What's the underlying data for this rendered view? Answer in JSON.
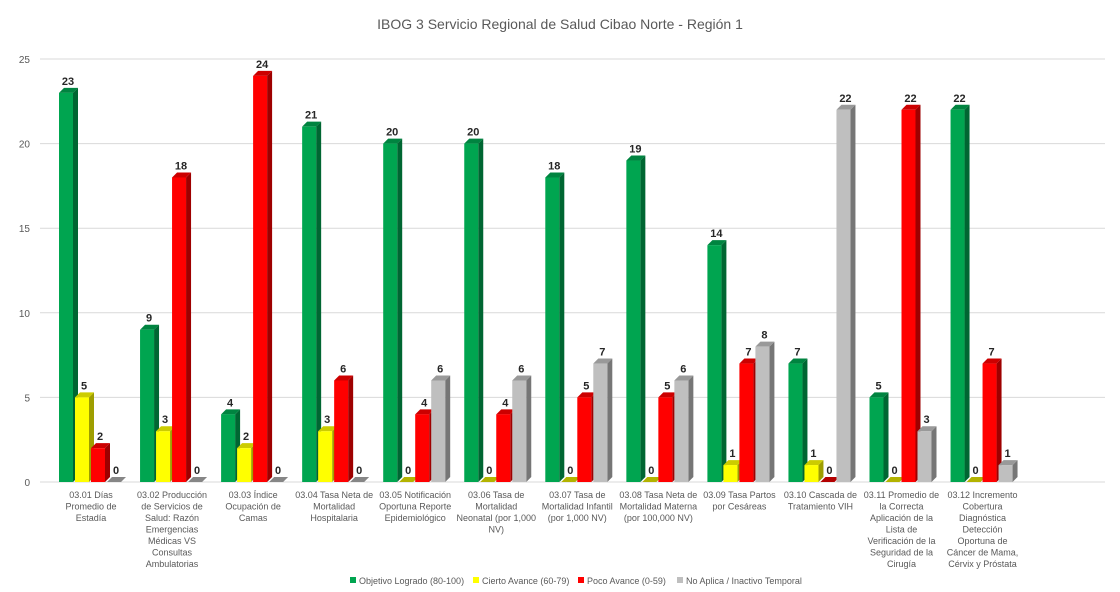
{
  "chart_data": {
    "type": "bar",
    "title": "IBOG 3 Servicio Regional de Salud Cibao Norte - Región 1",
    "categories": [
      [
        "03.01 Días",
        "Promedio de",
        "Estadía"
      ],
      [
        "03.02 Producción",
        "de Servicios de",
        "Salud: Razón",
        "Emergencias",
        "Médicas VS",
        "Consultas",
        "Ambulatorias"
      ],
      [
        "03.03 Índice",
        "Ocupación de",
        "Camas"
      ],
      [
        "03.04 Tasa Neta de",
        "Mortalidad",
        "Hospitalaria"
      ],
      [
        "03.05 Notificación",
        "Oportuna Reporte",
        "Epidemiológico"
      ],
      [
        "03.06 Tasa de",
        "Mortalidad",
        "Neonatal (por 1,000",
        "NV)"
      ],
      [
        "03.07 Tasa de",
        "Mortalidad Infantil",
        "(por 1,000 NV)"
      ],
      [
        "03.08 Tasa Neta de",
        "Mortalidad Materna",
        "(por 100,000 NV)"
      ],
      [
        "03.09 Tasa Partos",
        "por Cesáreas"
      ],
      [
        "03.10 Cascada de",
        "Tratamiento VIH"
      ],
      [
        "03.11 Promedio de",
        "la Correcta",
        "Aplicación de la",
        "Lista de",
        "Verificación de la",
        "Seguridad de la",
        "Cirugía"
      ],
      [
        "03.12 Incremento",
        "Cobertura",
        "Diagnóstica",
        "Detección",
        "Oportuna de",
        "Cáncer de Mama,",
        "Cérvix y Próstata"
      ]
    ],
    "series": [
      {
        "name": "Objetivo Logrado (80-100)",
        "color": "#00A550",
        "values": [
          23,
          9,
          4,
          21,
          20,
          20,
          18,
          19,
          14,
          7,
          5,
          22
        ]
      },
      {
        "name": "Cierto Avance (60-79)",
        "color": "#FFFF00",
        "values": [
          5,
          3,
          2,
          3,
          0,
          0,
          0,
          0,
          1,
          1,
          0,
          0
        ]
      },
      {
        "name": "Poco Avance (0-59)",
        "color": "#FF0000",
        "values": [
          2,
          18,
          24,
          6,
          4,
          4,
          5,
          5,
          7,
          0,
          22,
          7
        ]
      },
      {
        "name": "No Aplica / Inactivo Temporal",
        "color": "#BFBFBF",
        "values": [
          0,
          0,
          0,
          0,
          6,
          6,
          7,
          6,
          8,
          22,
          3,
          1
        ]
      }
    ],
    "ylim": [
      0,
      25
    ],
    "yticks": [
      0,
      5,
      10,
      15,
      20,
      25
    ],
    "xlabel": "",
    "ylabel": "",
    "grid": true,
    "legend_position": "bottom",
    "data_labels": true
  }
}
